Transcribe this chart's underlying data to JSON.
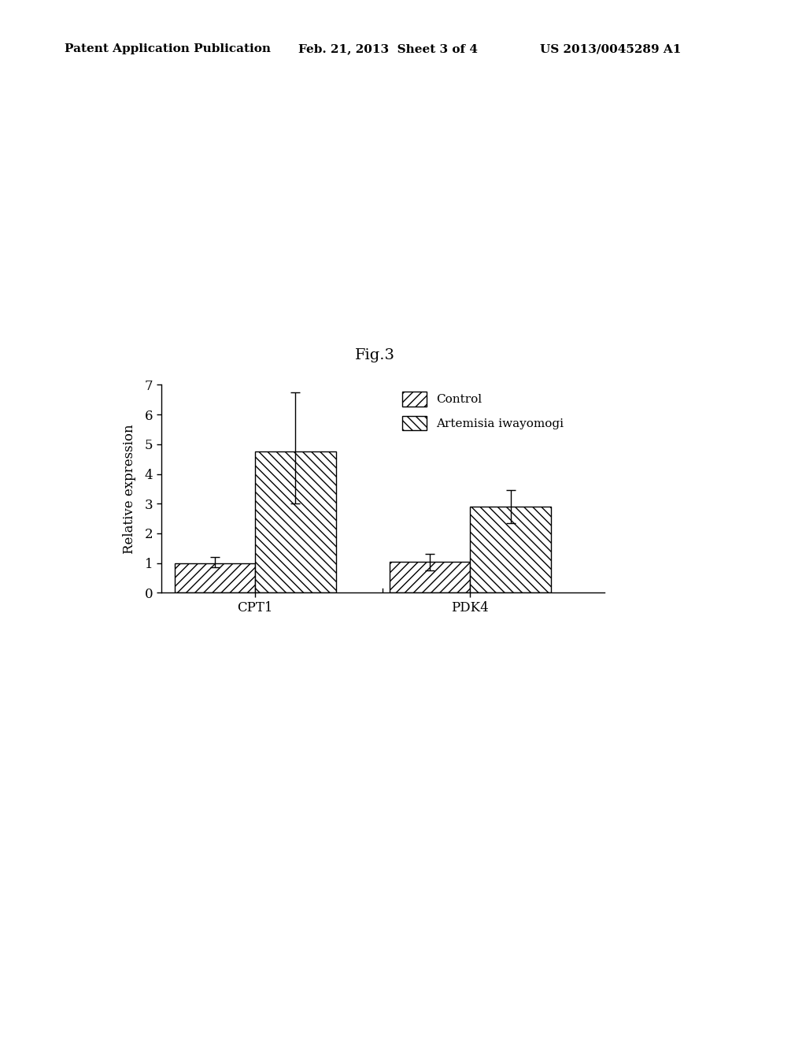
{
  "fig_label": "Fig.3",
  "header_left": "Patent Application Publication",
  "header_mid": "Feb. 21, 2013  Sheet 3 of 4",
  "header_right": "US 2013/0045289 A1",
  "categories": [
    "CPT1",
    "PDK4"
  ],
  "control_values": [
    1.0,
    1.05
  ],
  "artemisia_values": [
    4.75,
    2.9
  ],
  "control_errors_up": [
    0.2,
    0.25
  ],
  "control_errors_down": [
    0.15,
    0.3
  ],
  "artemisia_errors_up": [
    2.0,
    0.55
  ],
  "artemisia_errors_down": [
    1.75,
    0.55
  ],
  "ylabel": "Relative expression",
  "ylim": [
    0,
    7
  ],
  "yticks": [
    0,
    1,
    2,
    3,
    4,
    5,
    6,
    7
  ],
  "legend_labels": [
    "Control",
    "Artemisia iwayomogi"
  ],
  "bar_width": 0.3,
  "background_color": "#ffffff",
  "bar_edge_color": "#000000"
}
